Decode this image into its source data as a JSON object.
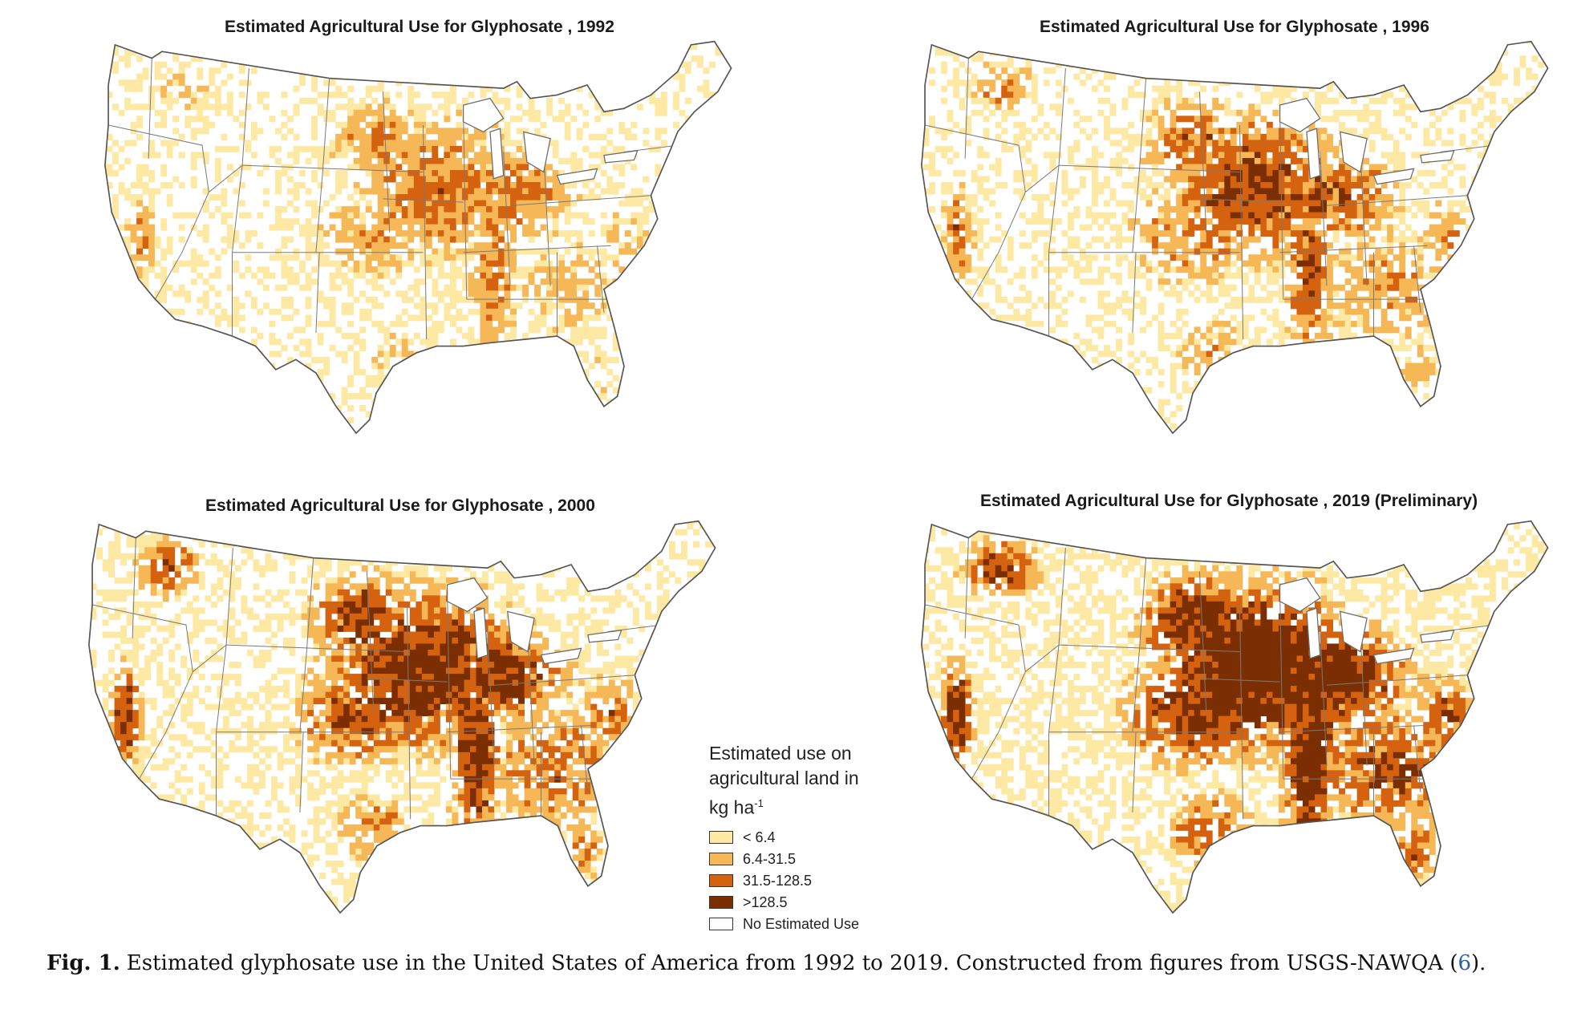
{
  "maps": [
    {
      "title": "Estimated Agricultural Use for Glyphosate , 1992",
      "year": 1992,
      "intensity": 0.18
    },
    {
      "title": "Estimated Agricultural Use for Glyphosate , 1996",
      "year": 1996,
      "intensity": 0.38
    },
    {
      "title": "Estimated Agricultural Use for Glyphosate , 2000",
      "year": 2000,
      "intensity": 0.62
    },
    {
      "title": "Estimated Agricultural Use for Glyphosate , 2019 (Preliminary)",
      "year": 2019,
      "intensity": 0.9
    }
  ],
  "legend": {
    "title_line1": "Estimated use on",
    "title_line2": "agricultural land in",
    "title_line3": "kg ha",
    "title_sup": "-1",
    "items": [
      {
        "label": "< 6.4",
        "color": "#fde9a3"
      },
      {
        "label": "6.4-31.5",
        "color": "#f6b857"
      },
      {
        "label": "31.5-128.5",
        "color": "#d4620f"
      },
      {
        "label": ">128.5",
        "color": "#7a2e02"
      },
      {
        "label": "No Estimated Use",
        "color": "#ffffff"
      }
    ]
  },
  "caption": {
    "label": "Fig. 1.",
    "text": "Estimated glyphosate use in the United States of America from 1992 to 2019. Constructed from figures from USGS-NAWQA (",
    "ref": "6",
    "end": ")."
  }
}
